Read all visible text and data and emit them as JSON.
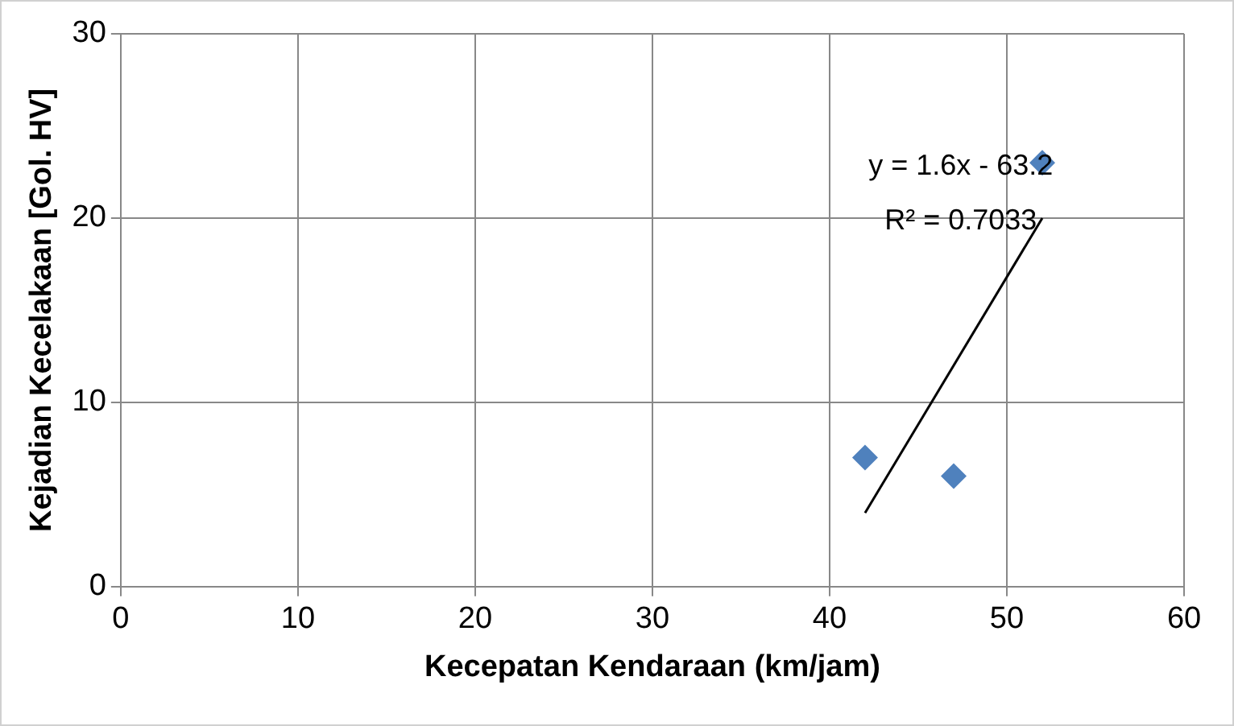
{
  "chart_data": {
    "type": "scatter",
    "xlabel": "Kecepatan Kendaraan (km/jam)",
    "ylabel": "Kejadian Kecelakaan [Gol. HV]",
    "series": [
      {
        "type": "scatter",
        "color": "#4f81bd",
        "x": [
          42,
          47,
          52
        ],
        "values": [
          7,
          6,
          23
        ],
        "marker": "diamond"
      },
      {
        "type": "line",
        "color": "#000000",
        "x": [
          42,
          52
        ],
        "values": [
          4,
          20
        ],
        "marker": "none"
      }
    ],
    "xlim": [
      0,
      60
    ],
    "xticks": [
      0,
      10,
      20,
      30,
      40,
      50,
      60
    ],
    "ylim": [
      0,
      30
    ],
    "yticks": [
      0,
      10,
      20,
      30
    ],
    "grid": true,
    "legend": false,
    "annotations": [
      "y = 1.6x - 63.2",
      "R² = 0.7033"
    ]
  }
}
